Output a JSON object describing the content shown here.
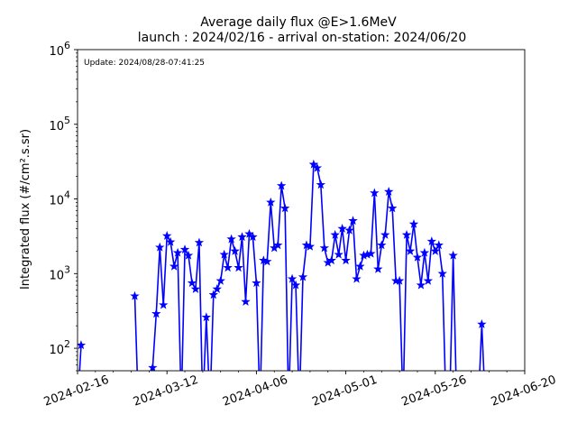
{
  "chart_data": {
    "type": "line",
    "title": "Average daily flux @E>1.6MeV",
    "subtitle": "launch : 2024/02/16 - arrival on-station: 2024/06/20",
    "annotation": "Update: 2024/08/28-07:41:25",
    "ylabel": "Integrated flux (#/cm².s.sr)",
    "xlabel": "",
    "yscale": "log",
    "xlim": [
      "2024-02-16",
      "2024-06-20"
    ],
    "ylim": [
      50,
      1000000
    ],
    "x_ticks": [
      "2024-02-16",
      "2024-03-12",
      "2024-04-06",
      "2024-05-01",
      "2024-05-26",
      "2024-06-20"
    ],
    "y_ticks": [
      {
        "value": 100,
        "base": "10",
        "exp": "2"
      },
      {
        "value": 1000,
        "base": "10",
        "exp": "3"
      },
      {
        "value": 10000,
        "base": "10",
        "exp": "4"
      },
      {
        "value": 100000,
        "base": "10",
        "exp": "5"
      },
      {
        "value": 1000000,
        "base": "10",
        "exp": "6"
      }
    ],
    "grid": false,
    "color": "#0000ff",
    "marker": "star",
    "series": [
      {
        "x": [
          "2024-02-16",
          "2024-02-17",
          "2024-03-03",
          "2024-03-04",
          "2024-03-05",
          "2024-03-06",
          "2024-03-07",
          "2024-03-08",
          "2024-03-09",
          "2024-03-10",
          "2024-03-11",
          "2024-03-12",
          "2024-03-13",
          "2024-03-14",
          "2024-03-15",
          "2024-03-16",
          "2024-03-17",
          "2024-03-18",
          "2024-03-19",
          "2024-03-20",
          "2024-03-21",
          "2024-03-22",
          "2024-03-23",
          "2024-03-24",
          "2024-03-25",
          "2024-03-26",
          "2024-03-27",
          "2024-03-28",
          "2024-03-29",
          "2024-03-30",
          "2024-03-31",
          "2024-04-01",
          "2024-04-02",
          "2024-04-03",
          "2024-04-04",
          "2024-04-05",
          "2024-04-06",
          "2024-04-07",
          "2024-04-08",
          "2024-04-09",
          "2024-04-10",
          "2024-04-11",
          "2024-04-12",
          "2024-04-13",
          "2024-04-14",
          "2024-04-15",
          "2024-04-16",
          "2024-04-17",
          "2024-04-18",
          "2024-04-19",
          "2024-04-20",
          "2024-04-21",
          "2024-04-22",
          "2024-04-23",
          "2024-04-24",
          "2024-04-25",
          "2024-04-26",
          "2024-04-27",
          "2024-04-28",
          "2024-04-29",
          "2024-04-30",
          "2024-05-01",
          "2024-05-02",
          "2024-05-03",
          "2024-05-04",
          "2024-05-05",
          "2024-05-06",
          "2024-05-07",
          "2024-05-08",
          "2024-05-09",
          "2024-05-10",
          "2024-05-11",
          "2024-05-12",
          "2024-05-13",
          "2024-05-14",
          "2024-05-15",
          "2024-05-16",
          "2024-05-17",
          "2024-05-18",
          "2024-05-19",
          "2024-05-20",
          "2024-05-21",
          "2024-05-22",
          "2024-05-23",
          "2024-05-24",
          "2024-05-25",
          "2024-05-26",
          "2024-05-27",
          "2024-05-28",
          "2024-05-29",
          "2024-05-30",
          "2024-05-31",
          "2024-06-01",
          "2024-06-02",
          "2024-06-03",
          "2024-06-04",
          "2024-06-05",
          "2024-06-06",
          "2024-06-07",
          "2024-06-08",
          "2024-06-09"
        ],
        "y": [
          null,
          110,
          500,
          null,
          null,
          null,
          null,
          55,
          290,
          2250,
          380,
          3200,
          2650,
          1250,
          1900,
          null,
          2100,
          1750,
          750,
          620,
          2600,
          null,
          260,
          null,
          520,
          620,
          800,
          1800,
          1200,
          2900,
          2000,
          1200,
          3100,
          420,
          3400,
          3100,
          750,
          null,
          1500,
          1450,
          9000,
          2200,
          2400,
          15000,
          7500,
          null,
          850,
          700,
          null,
          900,
          2400,
          2300,
          29000,
          26000,
          15500,
          2200,
          1400,
          1500,
          3300,
          1800,
          4000,
          1500,
          3800,
          5100,
          850,
          1250,
          1750,
          1800,
          1850,
          12000,
          1150,
          2400,
          3300,
          12500,
          7500,
          800,
          800,
          null,
          3300,
          2000,
          4600,
          1650,
          700,
          1900,
          800,
          2700,
          2000,
          2400,
          1000,
          null,
          null,
          1750,
          null,
          null,
          null,
          null,
          null,
          null,
          null,
          210,
          null
        ]
      }
    ]
  }
}
